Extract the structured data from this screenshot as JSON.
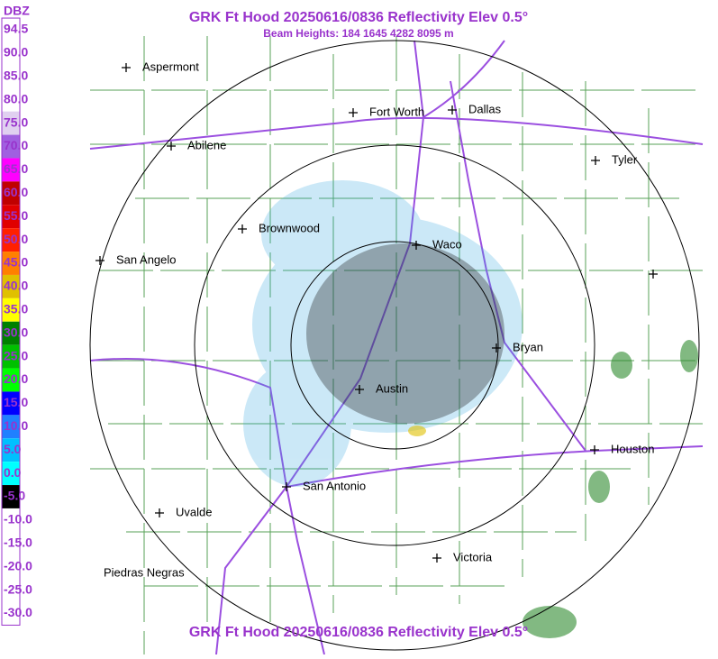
{
  "header": {
    "title": "GRK Ft Hood 20250616/0836 Reflectivity Elev 0.5°",
    "subtitle": "Beam Heights: 184 1645 4282 8095 m"
  },
  "legend": {
    "title": "DBZ",
    "labels": [
      "94.5",
      "90.0",
      "85.0",
      "80.0",
      "75.0",
      "70.0",
      "65.0",
      "60.0",
      "55.0",
      "50.0",
      "45.0",
      "40.0",
      "35.0",
      "30.0",
      "25.0",
      "20.0",
      "15.0",
      "10.0",
      "5.0",
      "0.0",
      "-5.0",
      "-10.0",
      "-15.0",
      "-20.0",
      "-25.0",
      "-30.0"
    ],
    "colors": [
      "#ffffff",
      "#ffffff",
      "#ffffff",
      "#ffffff",
      "#e0d0f0",
      "#a060e0",
      "#ff00ff",
      "#c00000",
      "#e00000",
      "#ff2000",
      "#ff8000",
      "#e0c000",
      "#ffff00",
      "#008000",
      "#00c000",
      "#00ff00",
      "#0000ff",
      "#2080ff",
      "#00c0ff",
      "#00ffff",
      "#000000",
      "#ffffff",
      "#ffffff",
      "#ffffff",
      "#ffffff",
      "#ffffff"
    ]
  },
  "cities": [
    "Aspermont",
    "Abilene",
    "Fort Worth",
    "Dallas",
    "Tyler",
    "Brownwood",
    "Waco",
    "San Angelo",
    "Bryan",
    "Austin",
    "Houston",
    "San Antonio",
    "Uvalde",
    "Victoria",
    "Piedras Negras"
  ]
}
